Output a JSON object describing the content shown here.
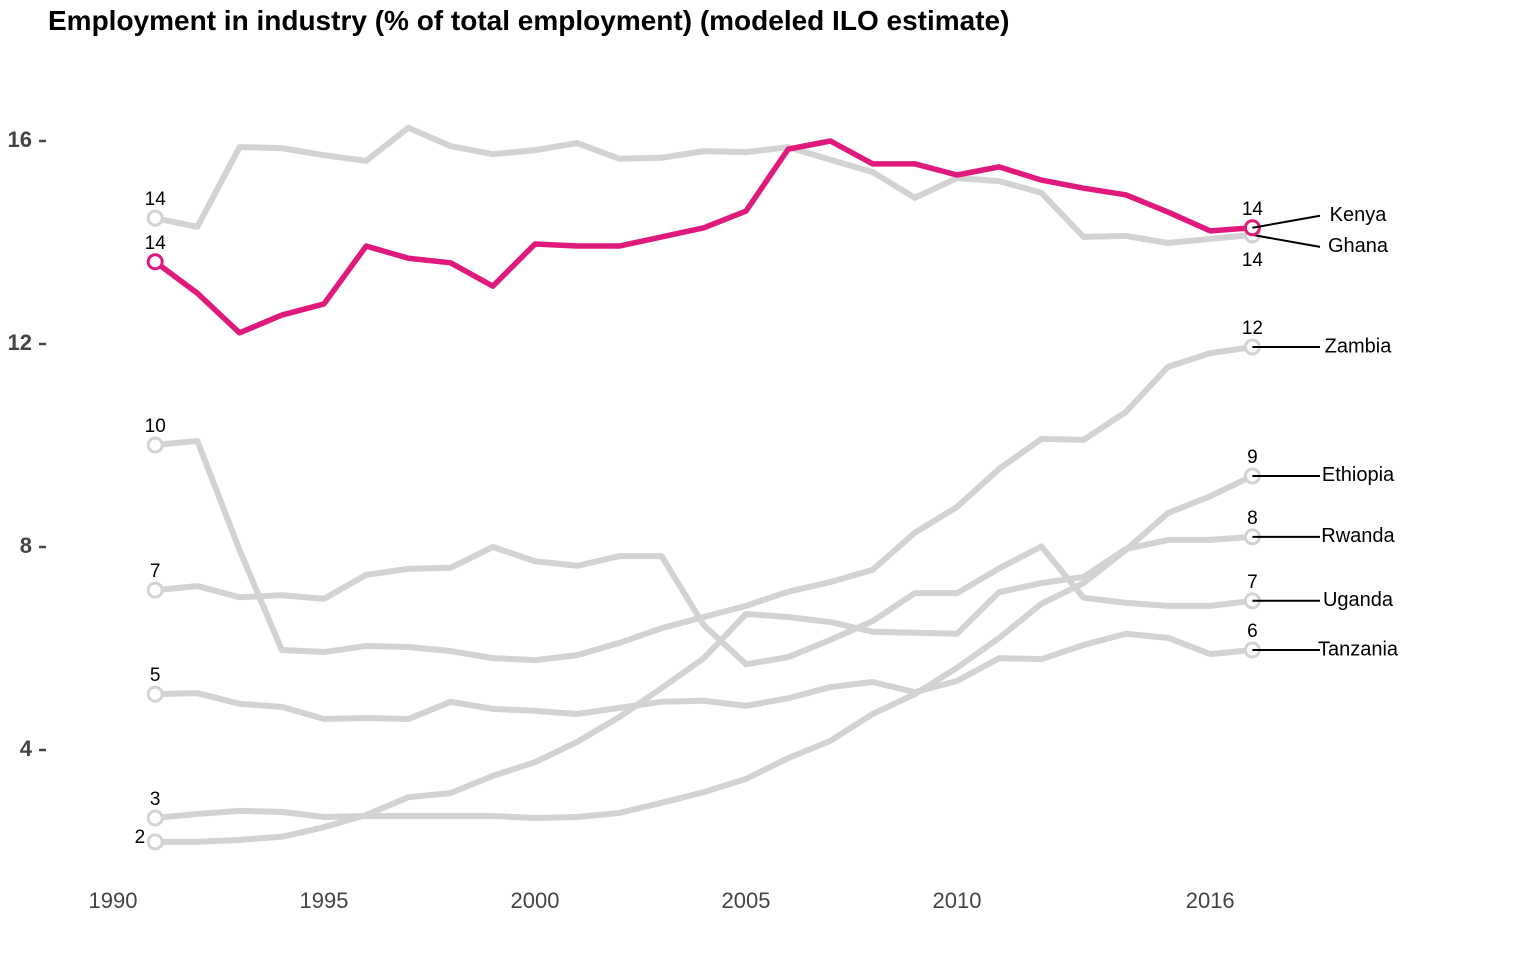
{
  "chart_data": {
    "type": "line",
    "title": "Employment in industry (% of total employment) (modeled ILO estimate)",
    "x": [
      1991,
      1992,
      1993,
      1994,
      1995,
      1996,
      1997,
      1998,
      1999,
      2000,
      2001,
      2002,
      2003,
      2004,
      2005,
      2006,
      2007,
      2008,
      2009,
      2010,
      2011,
      2012,
      2013,
      2014,
      2015,
      2016,
      2017
    ],
    "xlim": [
      1990,
      2024
    ],
    "xticks": [
      1990,
      1995,
      2000,
      2005,
      2010,
      2016
    ],
    "ylim": [
      1.6,
      16.5
    ],
    "yticks": [
      4,
      8,
      12,
      16
    ],
    "grid": false,
    "series": [
      {
        "name": "Ghana",
        "color": "#d3d3d3",
        "values": [
          14.48,
          14.31,
          15.88,
          15.86,
          15.72,
          15.61,
          16.26,
          15.9,
          15.74,
          15.82,
          15.96,
          15.65,
          15.67,
          15.8,
          15.78,
          15.88,
          15.63,
          15.39,
          14.88,
          15.27,
          15.21,
          14.98,
          14.11,
          14.13,
          13.99,
          14.07,
          14.15
        ],
        "value_labels": [
          "14",
          null,
          null,
          null,
          null,
          null,
          null,
          null,
          null,
          null,
          null,
          null,
          null,
          null,
          null,
          null,
          null,
          null,
          null,
          null,
          null,
          null,
          null,
          null,
          null,
          null,
          "14"
        ]
      },
      {
        "name": "Zambia",
        "color": "#d3d3d3",
        "values": [
          10.01,
          10.09,
          7.94,
          5.97,
          5.93,
          6.05,
          6.03,
          5.95,
          5.81,
          5.77,
          5.87,
          6.11,
          6.4,
          6.62,
          6.84,
          7.12,
          7.31,
          7.55,
          8.28,
          8.79,
          9.54,
          10.13,
          10.11,
          10.66,
          11.55,
          11.82,
          11.94
        ],
        "value_labels": [
          "10",
          null,
          null,
          null,
          null,
          null,
          null,
          null,
          null,
          null,
          null,
          null,
          null,
          null,
          null,
          null,
          null,
          null,
          null,
          null,
          null,
          null,
          null,
          null,
          null,
          null,
          "12"
        ]
      },
      {
        "name": "Ethiopia",
        "color": "#d3d3d3",
        "values": [
          2.66,
          2.74,
          2.8,
          2.78,
          2.68,
          2.7,
          2.7,
          2.7,
          2.7,
          2.66,
          2.68,
          2.76,
          2.96,
          3.17,
          3.43,
          3.84,
          4.18,
          4.71,
          5.1,
          5.62,
          6.21,
          6.88,
          7.29,
          7.94,
          8.67,
          9.0,
          9.4
        ],
        "value_labels": [
          "3",
          null,
          null,
          null,
          null,
          null,
          null,
          null,
          null,
          null,
          null,
          null,
          null,
          null,
          null,
          null,
          null,
          null,
          null,
          null,
          null,
          null,
          null,
          null,
          null,
          null,
          "9"
        ]
      },
      {
        "name": "Rwanda",
        "color": "#d3d3d3",
        "values": [
          2.19,
          2.19,
          2.23,
          2.29,
          2.48,
          2.72,
          3.07,
          3.15,
          3.49,
          3.76,
          4.16,
          4.65,
          5.22,
          5.81,
          6.68,
          6.62,
          6.52,
          6.33,
          6.31,
          6.29,
          7.11,
          7.29,
          7.41,
          7.96,
          8.14,
          8.14,
          8.2
        ],
        "value_labels": [
          "2",
          null,
          null,
          null,
          null,
          null,
          null,
          null,
          null,
          null,
          null,
          null,
          null,
          null,
          null,
          null,
          null,
          null,
          null,
          null,
          null,
          null,
          null,
          null,
          null,
          null,
          "8"
        ]
      },
      {
        "name": "Uganda",
        "color": "#d3d3d3",
        "values": [
          7.15,
          7.23,
          7.01,
          7.05,
          6.98,
          7.45,
          7.57,
          7.59,
          8.0,
          7.72,
          7.63,
          7.82,
          7.82,
          6.46,
          5.69,
          5.83,
          6.17,
          6.54,
          7.09,
          7.09,
          7.58,
          8.01,
          7.0,
          6.9,
          6.84,
          6.84,
          6.94
        ],
        "value_labels": [
          "7",
          null,
          null,
          null,
          null,
          null,
          null,
          null,
          null,
          null,
          null,
          null,
          null,
          null,
          null,
          null,
          null,
          null,
          null,
          null,
          null,
          null,
          null,
          null,
          null,
          null,
          "7"
        ]
      },
      {
        "name": "Tanzania",
        "color": "#d3d3d3",
        "values": [
          5.1,
          5.12,
          4.91,
          4.85,
          4.61,
          4.63,
          4.61,
          4.95,
          4.81,
          4.77,
          4.71,
          4.83,
          4.95,
          4.97,
          4.87,
          5.02,
          5.24,
          5.34,
          5.14,
          5.36,
          5.81,
          5.79,
          6.07,
          6.29,
          6.21,
          5.89,
          5.97
        ],
        "value_labels": [
          "5",
          null,
          null,
          null,
          null,
          null,
          null,
          null,
          null,
          null,
          null,
          null,
          null,
          null,
          null,
          null,
          null,
          null,
          null,
          null,
          null,
          null,
          null,
          null,
          null,
          null,
          "6"
        ]
      },
      {
        "name": "Kenya",
        "color": "#e0197d",
        "values": [
          13.62,
          13.0,
          12.22,
          12.57,
          12.79,
          13.93,
          13.69,
          13.6,
          13.14,
          13.97,
          13.93,
          13.93,
          14.11,
          14.29,
          14.62,
          15.84,
          16.0,
          15.55,
          15.55,
          15.33,
          15.49,
          15.23,
          15.07,
          14.94,
          14.6,
          14.23,
          14.29
        ],
        "value_labels": [
          "14",
          null,
          null,
          null,
          null,
          null,
          null,
          null,
          null,
          null,
          null,
          null,
          null,
          null,
          null,
          null,
          null,
          null,
          null,
          null,
          null,
          null,
          null,
          null,
          null,
          null,
          "14"
        ]
      }
    ]
  }
}
